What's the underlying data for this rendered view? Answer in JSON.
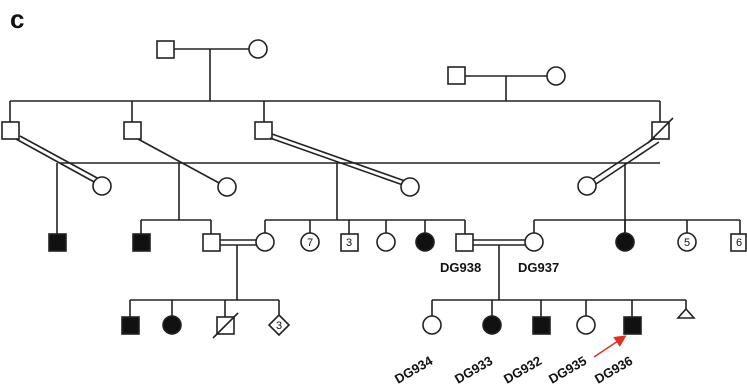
{
  "figure": {
    "panel_label": "c",
    "colors": {
      "affected": "#111111",
      "unaffected": "#ffffff",
      "line": "#222222",
      "proband_arrow": "#e0301e"
    },
    "symbol_counts": [
      "7",
      "3",
      "5",
      "6",
      "3"
    ],
    "labels": {
      "DG938": "DG938",
      "DG937": "DG937",
      "DG934": "DG934",
      "DG933": "DG933",
      "DG932": "DG932",
      "DG935": "DG935",
      "DG936": "DG936"
    }
  }
}
